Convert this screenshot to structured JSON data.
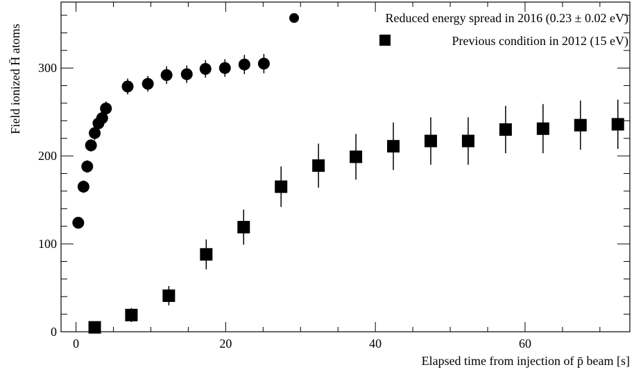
{
  "chart_data": {
    "type": "scatter",
    "xlabel": "Elapsed time from injection of p̄ beam [s]",
    "ylabel": "Field ionized H̄ atoms",
    "xlim": [
      -2,
      74
    ],
    "ylim": [
      0,
      375
    ],
    "x_ticks": [
      0,
      20,
      40,
      60
    ],
    "y_ticks": [
      0,
      100,
      200,
      300
    ],
    "grid": false,
    "legend_position": "top-right",
    "series": [
      {
        "name": "Reduced energy spread in 2016 (0.23 ± 0.02 eV)",
        "marker": "circle",
        "x": [
          0.3,
          1.0,
          1.5,
          2.0,
          2.5,
          3.0,
          3.5,
          4.0,
          6.9,
          9.6,
          12.1,
          14.8,
          17.3,
          19.9,
          22.5,
          25.1
        ],
        "y": [
          124,
          165,
          188,
          212,
          226,
          237,
          243,
          254,
          279,
          282,
          292,
          293,
          299,
          300,
          304,
          305
        ],
        "yerr": [
          4,
          7,
          7,
          7,
          8,
          8,
          8,
          8,
          9,
          9,
          10,
          10,
          10,
          10,
          11,
          11
        ]
      },
      {
        "name": "Previous condition in 2012 (15 eV)",
        "marker": "square",
        "x": [
          2.5,
          7.4,
          12.4,
          17.4,
          22.4,
          27.4,
          32.4,
          37.4,
          42.4,
          47.4,
          52.4,
          57.4,
          62.4,
          67.4,
          72.4
        ],
        "y": [
          5,
          19,
          41,
          88,
          119,
          165,
          189,
          199,
          211,
          217,
          217,
          230,
          231,
          235,
          236
        ],
        "yerr": [
          3,
          8,
          11,
          17,
          20,
          23,
          25,
          26,
          27,
          27,
          27,
          27,
          28,
          28,
          28
        ]
      }
    ]
  }
}
